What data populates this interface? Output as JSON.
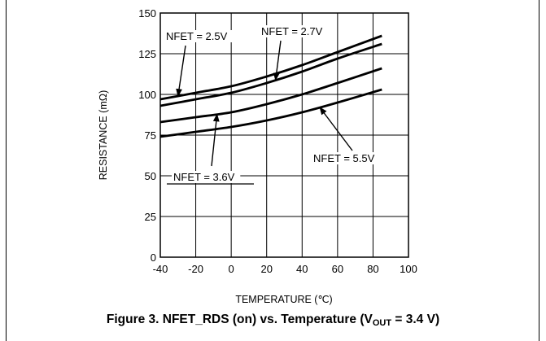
{
  "chart_data": {
    "type": "line",
    "xlabel": "TEMPERATURE (℃)",
    "ylabel": "RESISTANCE (mΩ)",
    "xlim": [
      -40,
      100
    ],
    "ylim": [
      0,
      150
    ],
    "xticks": [
      "-40",
      "-20",
      "0",
      "20",
      "40",
      "60",
      "80",
      "100"
    ],
    "yticks": [
      "0",
      "25",
      "50",
      "75",
      "100",
      "125",
      "150"
    ],
    "grid": true,
    "series": [
      {
        "name": "NFET = 2.5V",
        "x": [
          -40,
          -20,
          0,
          20,
          40,
          60,
          85
        ],
        "y": [
          97,
          101,
          105,
          111,
          118,
          126,
          136
        ]
      },
      {
        "name": "NFET = 2.7V",
        "x": [
          -40,
          -20,
          0,
          20,
          40,
          60,
          85
        ],
        "y": [
          93,
          97,
          101,
          107,
          114,
          122,
          131
        ]
      },
      {
        "name": "NFET = 3.6V",
        "x": [
          -40,
          -20,
          0,
          20,
          40,
          60,
          85
        ],
        "y": [
          83,
          86,
          89,
          94,
          100,
          107,
          116
        ]
      },
      {
        "name": "NFET = 5.5V",
        "x": [
          -40,
          -20,
          0,
          20,
          40,
          60,
          85
        ],
        "y": [
          74,
          77,
          80,
          84,
          89,
          95,
          103
        ]
      }
    ],
    "annotations": [
      {
        "text": "NFET = 2.5V",
        "series": 0
      },
      {
        "text": "NFET = 2.7V",
        "series": 1
      },
      {
        "text": "NFET = 3.6V",
        "series": 2
      },
      {
        "text": "NFET = 5.5V",
        "series": 3
      }
    ]
  },
  "caption": {
    "prefix": "Figure 3.  NFET_RDS (on) vs. Temperature (V",
    "sub": "OUT",
    "suffix": " = 3.4 V)"
  }
}
